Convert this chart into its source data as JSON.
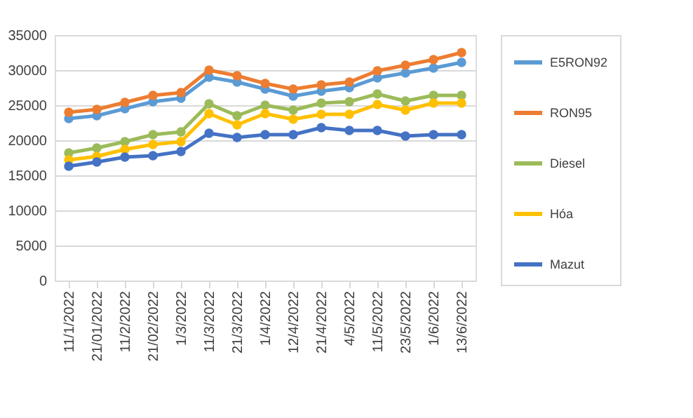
{
  "chart_data": {
    "type": "line",
    "categories": [
      "11/1/2022",
      "21/01/2022",
      "11/2/2022",
      "21/02/2022",
      "1/3/2022",
      "11/3/2022",
      "21/3/2022",
      "1/4/2022",
      "12/4/2022",
      "21/4/2022",
      "4/5/2022",
      "11/5/2022",
      "23/5/2022",
      "1/6/2022",
      "13/6/2022"
    ],
    "series": [
      {
        "name": "E5RON92",
        "color": "#5b9bd5",
        "values": [
          23100,
          23500,
          24500,
          25500,
          26000,
          29000,
          28300,
          27300,
          26300,
          27000,
          27500,
          28900,
          29600,
          30300,
          31100
        ]
      },
      {
        "name": "RON95",
        "color": "#ed7d31",
        "values": [
          24000,
          24400,
          25400,
          26400,
          26800,
          30000,
          29200,
          28100,
          27300,
          27900,
          28300,
          29900,
          30700,
          31500,
          32500
        ]
      },
      {
        "name": "Diesel",
        "color": "#9bbb59",
        "values": [
          18200,
          18900,
          19800,
          20800,
          21200,
          25200,
          23500,
          25000,
          24300,
          25300,
          25500,
          26600,
          25600,
          26400,
          26400
        ]
      },
      {
        "name": "Hóa",
        "color": "#ffc000",
        "values": [
          17200,
          17700,
          18700,
          19400,
          19800,
          23800,
          22200,
          23800,
          23000,
          23700,
          23700,
          25100,
          24300,
          25300,
          25300
        ]
      },
      {
        "name": "Mazut",
        "color": "#4472c4",
        "values": [
          16300,
          16900,
          17600,
          17800,
          18400,
          21000,
          20400,
          20800,
          20800,
          21800,
          21400,
          21400,
          20600,
          20800,
          20800
        ]
      }
    ],
    "ylim": [
      0,
      35000
    ],
    "yticks": [
      0,
      5000,
      10000,
      15000,
      20000,
      25000,
      30000,
      35000
    ],
    "grid": "y",
    "legend": "right",
    "marker": "circle",
    "line_style": "solid"
  }
}
